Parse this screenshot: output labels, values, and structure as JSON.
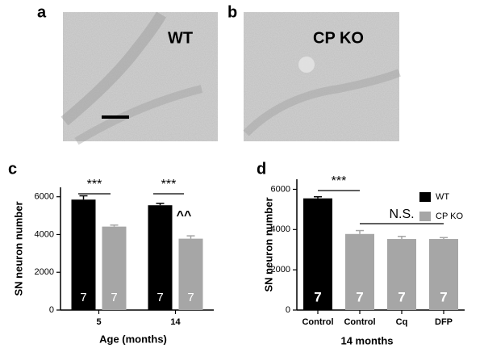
{
  "panels": [
    {
      "letter": "a",
      "label": "WT"
    },
    {
      "letter": "b",
      "label": "CP KO"
    }
  ],
  "chart_data": [
    {
      "type": "bar",
      "letter": "c",
      "y_label": "SN neuron number",
      "x_label": "Age (months)",
      "categories": [
        "5",
        "14"
      ],
      "series": [
        {
          "name": "WT",
          "color": "#000000",
          "values": [
            5850,
            5550
          ],
          "errors": [
            200,
            100
          ],
          "n": [
            7,
            7
          ]
        },
        {
          "name": "CP KO",
          "color": "#a6a6a6",
          "values": [
            4420,
            3780
          ],
          "errors": [
            80,
            150
          ],
          "n": [
            7,
            7
          ]
        }
      ],
      "ylim": [
        0,
        6500
      ],
      "yticks": [
        0,
        2000,
        4000,
        6000
      ],
      "annotations": [
        "***",
        "***",
        "^^"
      ],
      "legend": false
    },
    {
      "type": "bar",
      "letter": "d",
      "y_label": "SN neuron number",
      "x_label": "14 months",
      "categories": [
        "Control",
        "Control",
        "Cq",
        "DFP"
      ],
      "series": [
        {
          "name": "WT",
          "color": "#000000",
          "values": [
            5550,
            null,
            null,
            null
          ],
          "errors": [
            80,
            null,
            null,
            null
          ],
          "n": [
            7,
            null,
            null,
            null
          ]
        },
        {
          "name": "CP KO",
          "color": "#a6a6a6",
          "values": [
            null,
            3780,
            3530,
            3530
          ],
          "errors": [
            null,
            170,
            130,
            70
          ],
          "n": [
            null,
            7,
            7,
            7
          ]
        }
      ],
      "ylim": [
        0,
        6500
      ],
      "yticks": [
        0,
        2000,
        4000,
        6000
      ],
      "annotations": [
        "***",
        "N.S."
      ],
      "legend": true
    }
  ]
}
